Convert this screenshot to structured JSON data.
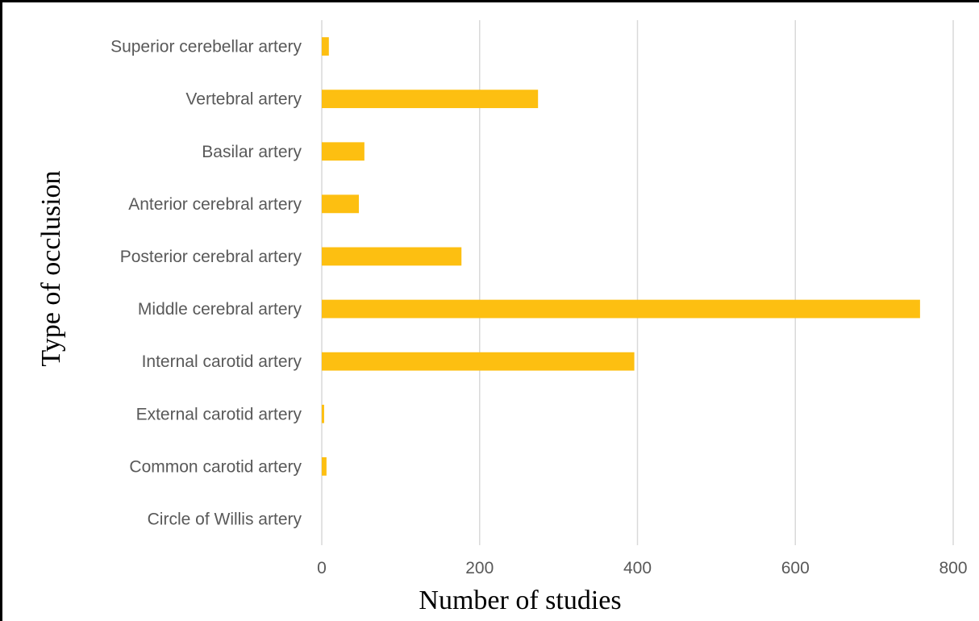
{
  "chart_data": {
    "type": "bar",
    "orientation": "horizontal",
    "title": "",
    "xlabel": "Number of studies",
    "ylabel": "Type of occlusion",
    "categories": [
      "Circle of Willis artery",
      "Common carotid artery",
      "External carotid artery",
      "Internal carotid artery",
      "Middle cerebral artery",
      "Posterior cerebral artery",
      "Anterior cerebral artery",
      "Basilar artery",
      "Vertebral artery",
      "Superior cerebellar artery"
    ],
    "values": [
      0,
      6,
      3,
      396,
      758,
      177,
      47,
      54,
      274,
      9
    ],
    "xlim": [
      0,
      800
    ],
    "xticks": [
      "0",
      "200",
      "400",
      "600",
      "800"
    ],
    "grid": "vertical",
    "legend": "none",
    "bar_color": "#FDBF11",
    "grid_color": "#D9D9D9"
  }
}
